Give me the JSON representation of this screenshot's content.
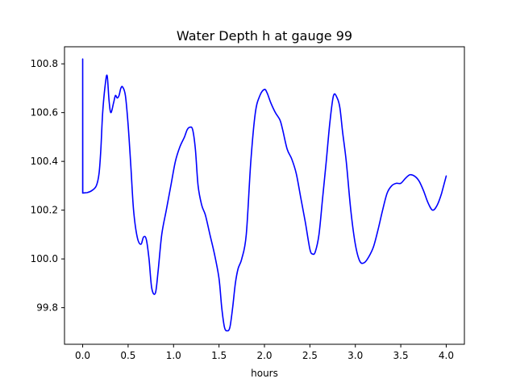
{
  "chart_data": {
    "type": "line",
    "title": "Water Depth h at gauge 99",
    "xlabel": "hours",
    "ylabel": "",
    "xlim": [
      -0.2,
      4.2
    ],
    "ylim": [
      99.65,
      100.87
    ],
    "xticks": [
      0.0,
      0.5,
      1.0,
      1.5,
      2.0,
      2.5,
      3.0,
      3.5,
      4.0
    ],
    "xtick_labels": [
      "0.0",
      "0.5",
      "1.0",
      "1.5",
      "2.0",
      "2.5",
      "3.0",
      "3.5",
      "4.0"
    ],
    "yticks": [
      99.8,
      100.0,
      100.2,
      100.4,
      100.6,
      100.8
    ],
    "ytick_labels": [
      "99.8",
      "100.0",
      "100.2",
      "100.4",
      "100.6",
      "100.8"
    ],
    "grid": false,
    "series": [
      {
        "color": "#0000ff",
        "x": [
          0.0,
          0.0,
          0.001,
          0.05,
          0.1,
          0.15,
          0.18,
          0.2,
          0.22,
          0.25,
          0.27,
          0.29,
          0.31,
          0.34,
          0.36,
          0.38,
          0.4,
          0.42,
          0.44,
          0.47,
          0.5,
          0.53,
          0.56,
          0.6,
          0.64,
          0.67,
          0.7,
          0.73,
          0.76,
          0.8,
          0.83,
          0.87,
          0.92,
          0.97,
          1.02,
          1.07,
          1.12,
          1.15,
          1.18,
          1.21,
          1.24,
          1.27,
          1.31,
          1.35,
          1.4,
          1.45,
          1.5,
          1.53,
          1.56,
          1.59,
          1.62,
          1.65,
          1.68,
          1.71,
          1.75,
          1.8,
          1.85,
          1.9,
          1.95,
          2.0,
          2.03,
          2.07,
          2.12,
          2.17,
          2.2,
          2.25,
          2.3,
          2.35,
          2.4,
          2.45,
          2.5,
          2.53,
          2.56,
          2.6,
          2.64,
          2.68,
          2.72,
          2.76,
          2.8,
          2.83,
          2.86,
          2.9,
          2.95,
          3.0,
          3.05,
          3.1,
          3.15,
          3.2,
          3.25,
          3.3,
          3.35,
          3.4,
          3.45,
          3.5,
          3.55,
          3.6,
          3.65,
          3.7,
          3.75,
          3.8,
          3.85,
          3.9,
          3.95,
          4.0
        ],
        "y": [
          100.27,
          100.82,
          100.27,
          100.272,
          100.28,
          100.3,
          100.35,
          100.45,
          100.6,
          100.72,
          100.75,
          100.65,
          100.6,
          100.64,
          100.67,
          100.66,
          100.67,
          100.7,
          100.705,
          100.67,
          100.55,
          100.38,
          100.2,
          100.09,
          100.06,
          100.09,
          100.08,
          100.0,
          99.88,
          99.86,
          99.95,
          100.1,
          100.2,
          100.3,
          100.4,
          100.46,
          100.5,
          100.53,
          100.54,
          100.53,
          100.45,
          100.3,
          100.22,
          100.18,
          100.1,
          100.02,
          99.92,
          99.8,
          99.72,
          99.705,
          99.72,
          99.8,
          99.9,
          99.96,
          100.0,
          100.1,
          100.4,
          100.6,
          100.67,
          100.695,
          100.68,
          100.64,
          100.6,
          100.57,
          100.53,
          100.45,
          100.41,
          100.35,
          100.25,
          100.15,
          100.04,
          100.02,
          100.03,
          100.1,
          100.25,
          100.4,
          100.56,
          100.67,
          100.66,
          100.62,
          100.52,
          100.4,
          100.2,
          100.06,
          99.99,
          99.985,
          100.01,
          100.05,
          100.12,
          100.2,
          100.27,
          100.3,
          100.31,
          100.31,
          100.33,
          100.345,
          100.34,
          100.32,
          100.28,
          100.23,
          100.2,
          100.22,
          100.27,
          100.34
        ]
      }
    ]
  }
}
